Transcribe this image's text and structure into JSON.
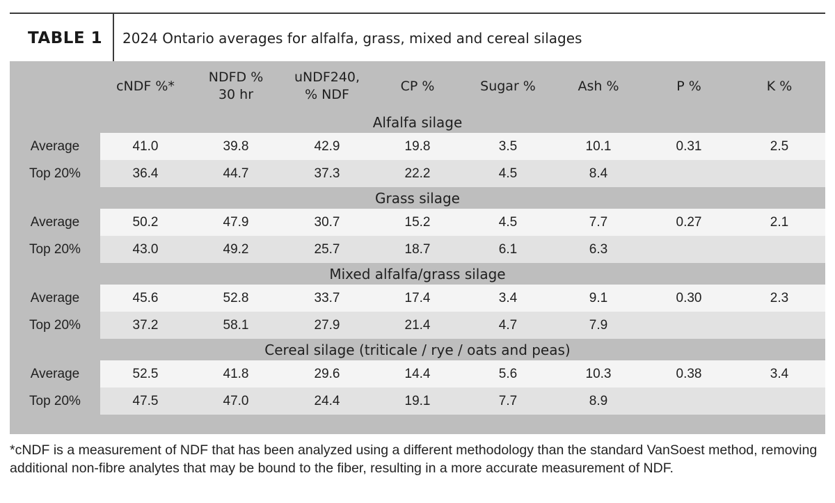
{
  "table": {
    "label": "TABLE 1",
    "title": "2024 Ontario averages for alfalfa, grass, mixed and cereal silages",
    "columns": [
      [
        "cNDF %*"
      ],
      [
        "NDFD %",
        "30 hr"
      ],
      [
        "uNDF240,",
        "% NDF"
      ],
      [
        "CP %"
      ],
      [
        "Sugar %"
      ],
      [
        "Ash %"
      ],
      [
        "P %"
      ],
      [
        "K %"
      ]
    ],
    "sections": [
      {
        "title": "Alfalfa silage",
        "rows": [
          {
            "label": "Average",
            "values": [
              "41.0",
              "39.8",
              "42.9",
              "19.8",
              "3.5",
              "10.1",
              "0.31",
              "2.5"
            ]
          },
          {
            "label": "Top 20%",
            "values": [
              "36.4",
              "44.7",
              "37.3",
              "22.2",
              "4.5",
              "8.4",
              "",
              ""
            ]
          }
        ]
      },
      {
        "title": "Grass silage",
        "rows": [
          {
            "label": "Average",
            "values": [
              "50.2",
              "47.9",
              "30.7",
              "15.2",
              "4.5",
              "7.7",
              "0.27",
              "2.1"
            ]
          },
          {
            "label": "Top 20%",
            "values": [
              "43.0",
              "49.2",
              "25.7",
              "18.7",
              "6.1",
              "6.3",
              "",
              ""
            ]
          }
        ]
      },
      {
        "title": "Mixed alfalfa/grass silage",
        "rows": [
          {
            "label": "Average",
            "values": [
              "45.6",
              "52.8",
              "33.7",
              "17.4",
              "3.4",
              "9.1",
              "0.30",
              "2.3"
            ]
          },
          {
            "label": "Top 20%",
            "values": [
              "37.2",
              "58.1",
              "27.9",
              "21.4",
              "4.7",
              "7.9",
              "",
              ""
            ]
          }
        ]
      },
      {
        "title": "Cereal silage (triticale / rye / oats and peas)",
        "rows": [
          {
            "label": "Average",
            "values": [
              "52.5",
              "41.8",
              "29.6",
              "14.4",
              "5.6",
              "10.3",
              "0.38",
              "3.4"
            ]
          },
          {
            "label": "Top 20%",
            "values": [
              "47.5",
              "47.0",
              "24.4",
              "19.1",
              "7.7",
              "8.9",
              "",
              ""
            ]
          }
        ]
      }
    ],
    "footnote": "*cNDF is a measurement of NDF that has been analyzed using a different methodology than the standard VanSoest method, removing additional non-fibre analytes that may be bound to the fiber, resulting in a more accurate measurement of NDF."
  }
}
